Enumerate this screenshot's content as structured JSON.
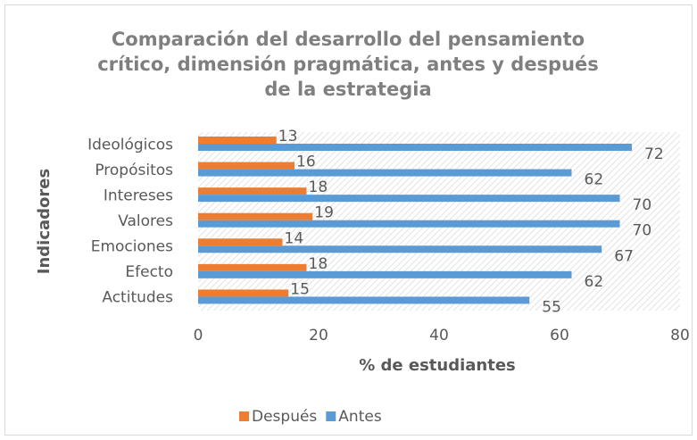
{
  "chart_data": {
    "type": "bar",
    "orientation": "horizontal",
    "title": "Comparación del desarrollo del pensamiento crítico, dimensión pragmática, antes y después de la estrategia",
    "xlabel": "% de estudiantes",
    "ylabel": "Indicadores",
    "categories": [
      "Ideológicos",
      "Propósitos",
      "Intereses",
      "Valores",
      "Emociones",
      "Efecto",
      "Actitudes"
    ],
    "series": [
      {
        "name": "Después",
        "color": "#ed7d31",
        "values": [
          13,
          16,
          18,
          19,
          14,
          18,
          15
        ]
      },
      {
        "name": "Antes",
        "color": "#5b9bd5",
        "values": [
          72,
          62,
          70,
          70,
          67,
          62,
          55
        ]
      }
    ],
    "xlim": [
      0,
      80
    ],
    "xticks": [
      0,
      20,
      40,
      60,
      80
    ],
    "legend": "bottom"
  }
}
